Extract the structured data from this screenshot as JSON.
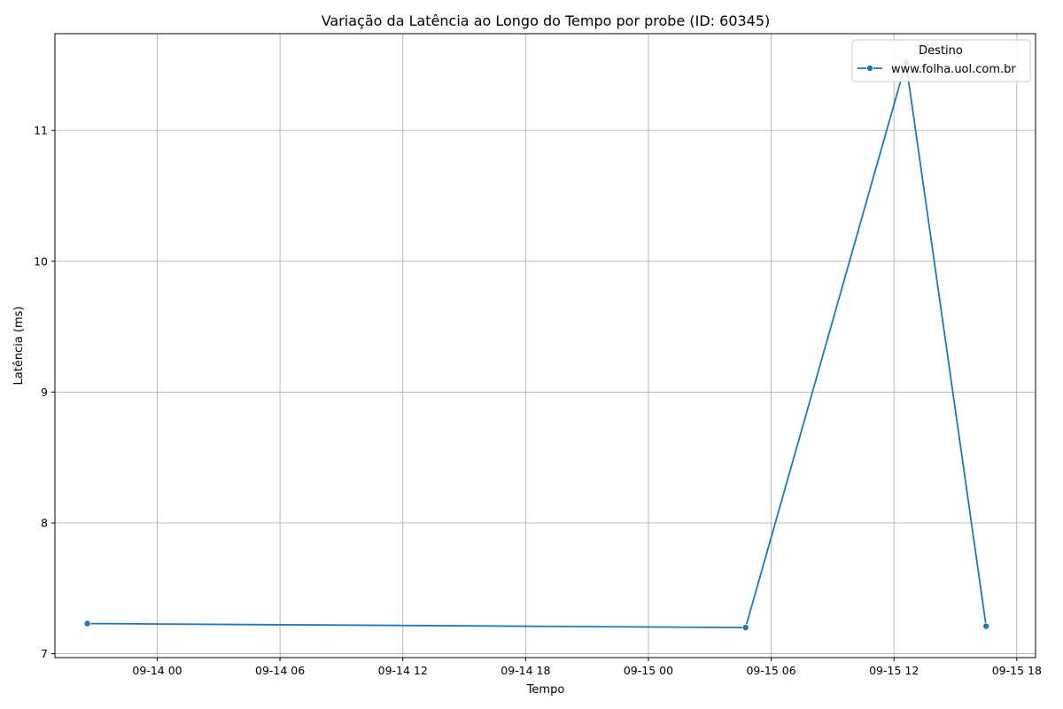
{
  "chart_data": {
    "type": "line",
    "title": "Variação da Latência ao Longo do Tempo por probe (ID: 60345)",
    "xlabel": "Tempo",
    "ylabel": "Latência (ms)",
    "x_ticks": [
      "09-14 00",
      "09-14 06",
      "09-14 12",
      "09-14 18",
      "09-15 00",
      "09-15 06",
      "09-15 12",
      "09-15 18"
    ],
    "y_ticks": [
      "7",
      "8",
      "9",
      "10",
      "11"
    ],
    "ylim": [
      6.97,
      11.74
    ],
    "xlim": [
      "2024-09-13 19:00",
      "2024-09-15 18:55"
    ],
    "grid": true,
    "legend": {
      "title": "Destino",
      "position": "top-right"
    },
    "series": [
      {
        "name": "www.folha.uol.com.br",
        "color": "#1f77b4",
        "marker": "circle",
        "points": [
          {
            "x": "2024-09-13 20:35",
            "y": 7.23
          },
          {
            "x": "2024-09-15 04:45",
            "y": 7.2
          },
          {
            "x": "2024-09-15 12:35",
            "y": 11.52
          },
          {
            "x": "2024-09-15 16:30",
            "y": 7.21
          }
        ]
      }
    ]
  }
}
